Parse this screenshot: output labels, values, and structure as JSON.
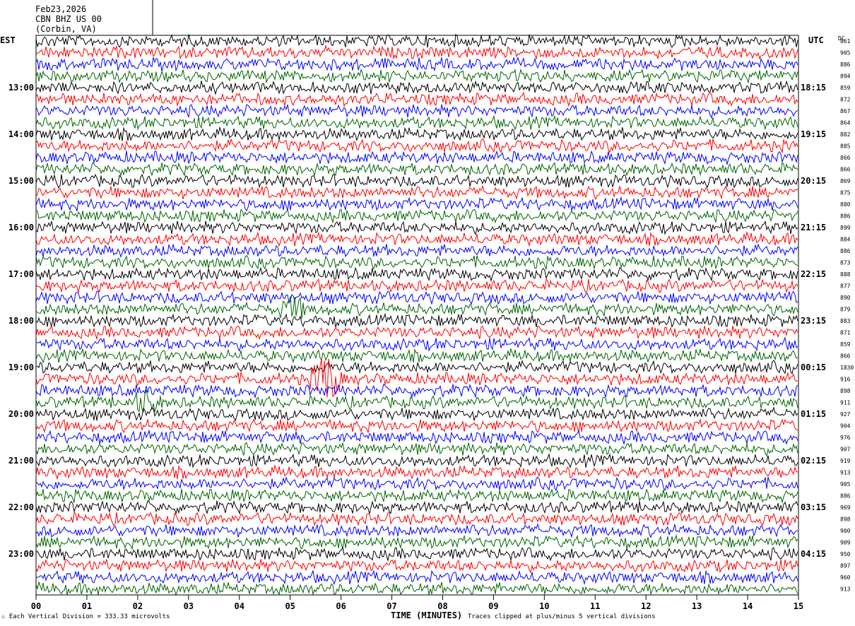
{
  "header": {
    "date": "Feb23,2026",
    "station": "CBN BHZ US 00",
    "location": "(Corbin, VA)"
  },
  "left_axis_title": "EST",
  "right_axis_title": "UTC",
  "dc_label": "DC",
  "footer": {
    "scale": "Each Vertical Division =  333.33 microvolts",
    "clip": "Traces clipped at plus/minus 5 vertical divisions"
  },
  "chart_data": {
    "type": "line",
    "title": "",
    "xlabel": "TIME (MINUTES)",
    "x_ticks": [
      "00",
      "01",
      "02",
      "03",
      "04",
      "05",
      "06",
      "07",
      "08",
      "09",
      "10",
      "11",
      "12",
      "13",
      "14",
      "15"
    ],
    "xlim": [
      0,
      15
    ],
    "left_time_labels": [
      "13:00",
      "14:00",
      "15:00",
      "16:00",
      "17:00",
      "18:00",
      "19:00",
      "20:00",
      "21:00",
      "22:00",
      "23:00"
    ],
    "right_time_labels": [
      "18:15",
      "19:15",
      "20:15",
      "21:15",
      "22:15",
      "23:15",
      "00:15",
      "01:15",
      "02:15",
      "03:15",
      "04:15"
    ],
    "trace_colors": [
      "#000000",
      "#ff0000",
      "#0000ff",
      "#006400"
    ],
    "dc_offsets": [
      "861",
      "905",
      "886",
      "894",
      "859",
      "872",
      "867",
      "864",
      "882",
      "885",
      "866",
      "866",
      "869",
      "875",
      "880",
      "886",
      "899",
      "884",
      "886",
      "873",
      "888",
      "877",
      "890",
      "879",
      "883",
      "871",
      "859",
      "866",
      "1830",
      "916",
      "898",
      "911",
      "927",
      "904",
      "976",
      "907",
      "919",
      "913",
      "905",
      "886",
      "969",
      "898",
      "900",
      "909",
      "950",
      "897",
      "960",
      "913"
    ],
    "events": [
      {
        "trace": 29,
        "minute": 5.7,
        "note": "large burst"
      },
      {
        "trace": 31,
        "minute": 2.15,
        "note": "burst"
      },
      {
        "trace": 23,
        "minute": 5.05,
        "note": "small burst"
      }
    ]
  }
}
